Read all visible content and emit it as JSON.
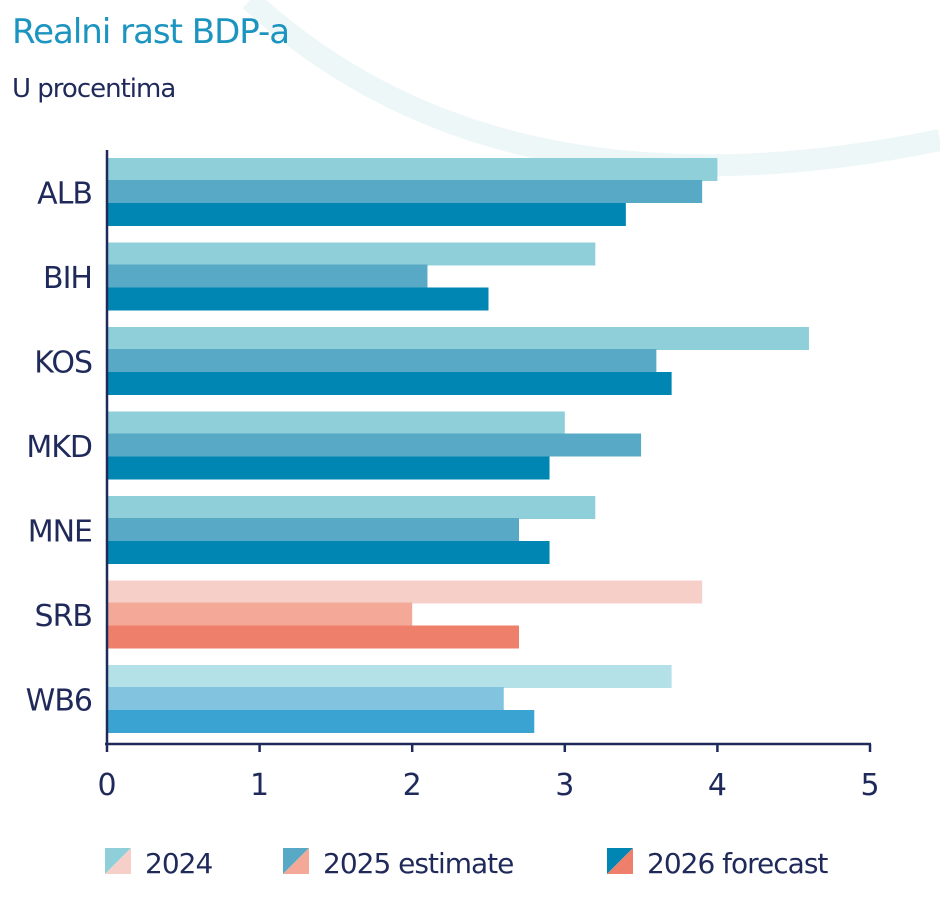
{
  "chart_data": {
    "type": "bar",
    "orientation": "horizontal",
    "title": "Realni rast BDP-a",
    "subtitle": "U procentima",
    "categories": [
      "ALB",
      "BIH",
      "KOS",
      "MKD",
      "MNE",
      "SRB",
      "WB6"
    ],
    "series": [
      {
        "name": "2024",
        "values": [
          4.0,
          3.2,
          4.6,
          3.0,
          3.2,
          3.9,
          3.7
        ]
      },
      {
        "name": "2025 estimate",
        "values": [
          3.9,
          2.1,
          3.6,
          3.5,
          2.7,
          2.0,
          2.6
        ]
      },
      {
        "name": "2026 forecast",
        "values": [
          3.4,
          2.5,
          3.7,
          2.9,
          2.9,
          2.7,
          2.8
        ]
      }
    ],
    "xlim": [
      0,
      5
    ],
    "xticks": [
      "0",
      "1",
      "2",
      "3",
      "4",
      "5"
    ],
    "grid": false,
    "legend_placement": "bottom",
    "colors": {
      "default": [
        "#8ecfd9",
        "#58a9c6",
        "#0086b3"
      ],
      "SRB": [
        "#f7cfc9",
        "#f4a898",
        "#ee7f6a"
      ],
      "WB6": [
        "#b4e0e8",
        "#82c4df",
        "#3aa3d2"
      ]
    }
  }
}
